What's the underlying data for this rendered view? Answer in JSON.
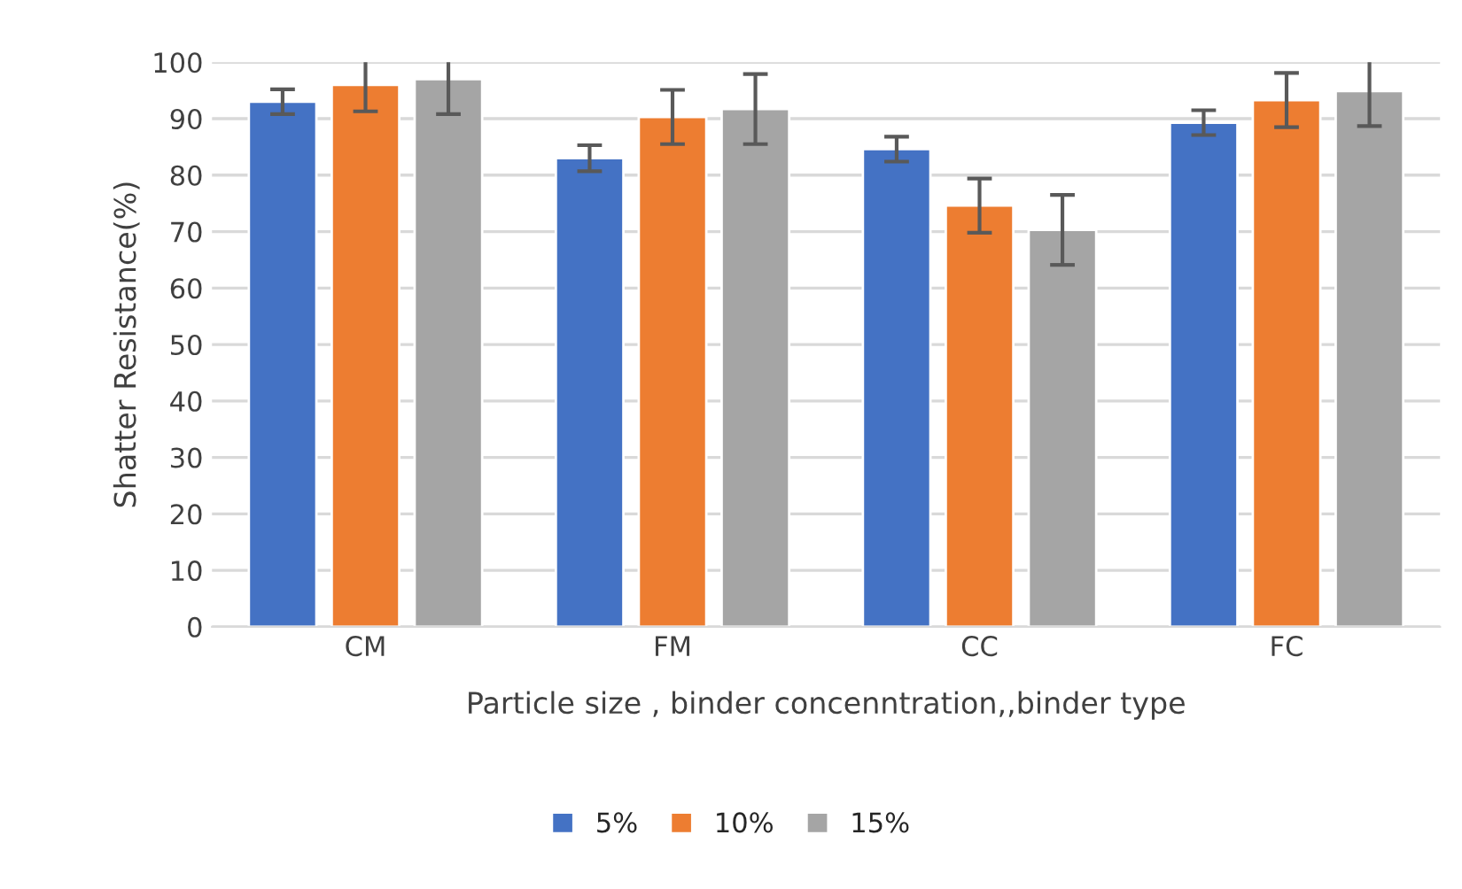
{
  "chart_data": {
    "type": "bar",
    "xlabel": "Particle size , binder concenntration,,binder type",
    "ylabel": "Shatter Resistance(%)",
    "categories": [
      "CM",
      "FM",
      "CC",
      "FC"
    ],
    "series": [
      {
        "name": "5%",
        "color": "#4472c4",
        "values": [
          93,
          83,
          84.6,
          89.3
        ],
        "errors": [
          2.2,
          2.3,
          2.2,
          2.2
        ]
      },
      {
        "name": "10%",
        "color": "#ed7d31",
        "values": [
          96,
          90.3,
          74.6,
          93.3
        ],
        "errors": [
          4.7,
          4.8,
          4.8,
          4.8
        ]
      },
      {
        "name": "15%",
        "color": "#a5a5a5",
        "values": [
          97,
          91.7,
          70.3,
          94.9
        ],
        "errors": [
          6.2,
          6.2,
          6.2,
          6.2
        ]
      }
    ],
    "ylim": [
      0,
      100
    ],
    "yticks": [
      0,
      10,
      20,
      30,
      40,
      50,
      60,
      70,
      80,
      90,
      100
    ],
    "grid": "y",
    "legend": "bottom"
  }
}
